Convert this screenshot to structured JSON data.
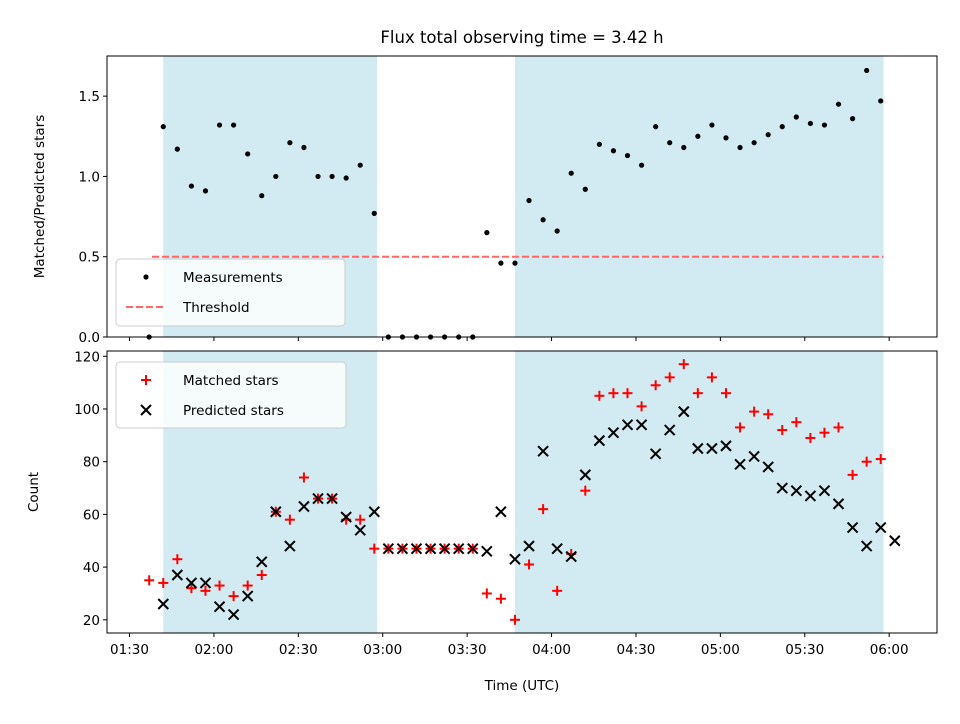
{
  "title": "Flux total observing time = 3.42 h",
  "x_tick_labels": [
    "01:30",
    "02:00",
    "02:30",
    "03:00",
    "03:30",
    "04:00",
    "04:30",
    "05:00",
    "05:30",
    "06:00"
  ],
  "x_ticks_min": [
    90,
    120,
    150,
    180,
    210,
    240,
    270,
    300,
    330,
    360
  ],
  "xlabel": "Time (UTC)",
  "xlim_min": [
    82,
    377
  ],
  "colors": {
    "shade": "#add8e6",
    "measurements": "#000000",
    "threshold": "#ff6666",
    "matched": "#ff0000",
    "predicted": "#000000"
  },
  "chart_data": [
    {
      "type": "scatter",
      "ylabel": "Matched/Predicted stars",
      "ylim": [
        0,
        1.75
      ],
      "y_ticks": [
        0.0,
        0.5,
        1.0,
        1.5
      ],
      "y_tick_labels": [
        "0.0",
        "0.5",
        "1.0",
        "1.5"
      ],
      "legend_placement": "lower-left",
      "shaded_intervals_min": [
        [
          102,
          178
        ],
        [
          227,
          358
        ]
      ],
      "threshold": {
        "name": "Threshold",
        "y": 0.5,
        "x_range_min": [
          98,
          358
        ]
      },
      "series": [
        {
          "name": "Measurements",
          "marker": "dot",
          "x_min": [
            97,
            102,
            107,
            112,
            117,
            122,
            127,
            132,
            137,
            142,
            147,
            152,
            157,
            162,
            167,
            172,
            177,
            182,
            187,
            192,
            197,
            202,
            207,
            212,
            217,
            222,
            227,
            232,
            237,
            242,
            247,
            252,
            257,
            262,
            267,
            272,
            277,
            282,
            287,
            292,
            297,
            302,
            307,
            312,
            317,
            322,
            327,
            332,
            337,
            342,
            347,
            352,
            357
          ],
          "y": [
            0.0,
            1.31,
            1.17,
            0.94,
            0.91,
            1.32,
            1.32,
            1.14,
            0.88,
            1.0,
            1.21,
            1.18,
            1.0,
            1.0,
            0.99,
            1.07,
            0.77,
            0.0,
            0.0,
            0.0,
            0.0,
            0.0,
            0.0,
            0.0,
            0.65,
            0.46,
            0.46,
            0.85,
            0.73,
            0.66,
            1.02,
            0.92,
            1.2,
            1.16,
            1.13,
            1.07,
            1.31,
            1.21,
            1.18,
            1.25,
            1.32,
            1.24,
            1.18,
            1.21,
            1.26,
            1.31,
            1.37,
            1.33,
            1.32,
            1.45,
            1.36,
            1.66,
            1.47
          ]
        }
      ]
    },
    {
      "type": "scatter",
      "ylabel": "Count",
      "ylim": [
        15,
        122
      ],
      "y_ticks": [
        20,
        40,
        60,
        80,
        100,
        120
      ],
      "y_tick_labels": [
        "20",
        "40",
        "60",
        "80",
        "100",
        "120"
      ],
      "legend_placement": "upper-left",
      "shaded_intervals_min": [
        [
          102,
          178
        ],
        [
          227,
          358
        ]
      ],
      "series": [
        {
          "name": "Matched stars",
          "marker": "plus",
          "x_min": [
            97,
            102,
            107,
            112,
            117,
            122,
            127,
            132,
            137,
            142,
            147,
            152,
            157,
            162,
            167,
            172,
            177,
            182,
            187,
            192,
            197,
            202,
            207,
            212,
            217,
            222,
            227,
            232,
            237,
            242,
            247,
            252,
            257,
            262,
            267,
            272,
            277,
            282,
            287,
            292,
            297,
            302,
            307,
            312,
            317,
            322,
            327,
            332,
            337,
            342,
            347,
            352,
            357
          ],
          "y": [
            35,
            34,
            43,
            32,
            31,
            33,
            29,
            33,
            37,
            61,
            58,
            74,
            66,
            66,
            58,
            58,
            47,
            47,
            47,
            47,
            47,
            47,
            47,
            47,
            30,
            28,
            20,
            41,
            62,
            31,
            45,
            69,
            105,
            106,
            106,
            101,
            109,
            112,
            117,
            106,
            112,
            106,
            93,
            99,
            98,
            92,
            95,
            89,
            91,
            93,
            75,
            80,
            81
          ]
        },
        {
          "name": "Predicted stars",
          "marker": "x",
          "x_min": [
            102,
            107,
            112,
            117,
            122,
            127,
            132,
            137,
            142,
            147,
            152,
            157,
            162,
            167,
            172,
            177,
            182,
            187,
            192,
            197,
            202,
            207,
            212,
            217,
            222,
            227,
            232,
            237,
            242,
            247,
            252,
            257,
            262,
            267,
            272,
            277,
            282,
            287,
            292,
            297,
            302,
            307,
            312,
            317,
            322,
            327,
            332,
            337,
            342,
            347,
            352,
            357,
            362
          ],
          "y": [
            26,
            37,
            34,
            34,
            25,
            22,
            29,
            42,
            61,
            48,
            63,
            66,
            66,
            59,
            54,
            61,
            47,
            47,
            47,
            47,
            47,
            47,
            47,
            46,
            61,
            43,
            48,
            84,
            47,
            44,
            75,
            88,
            91,
            94,
            94,
            83,
            92,
            99,
            85,
            85,
            86,
            79,
            82,
            78,
            70,
            69,
            67,
            69,
            64,
            55,
            48,
            55,
            50
          ]
        }
      ]
    }
  ]
}
